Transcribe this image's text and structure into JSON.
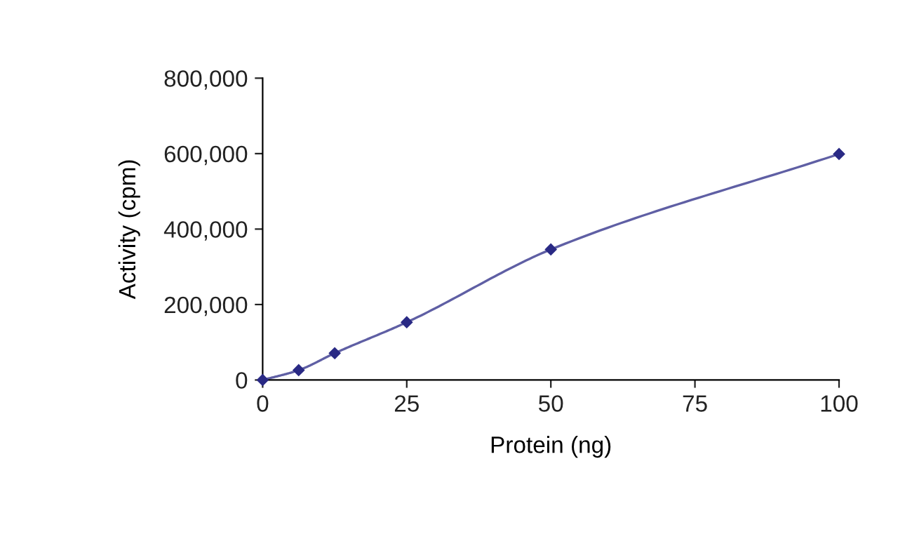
{
  "chart_data": {
    "type": "line",
    "xlabel": "Protein (ng)",
    "ylabel": "Activity (cpm)",
    "x": [
      0,
      6.25,
      12.5,
      25,
      50,
      100
    ],
    "series": [
      {
        "color": "#2a2a85",
        "values": [
          0,
          26000,
          71000,
          153000,
          346000,
          599000
        ]
      }
    ],
    "xlim": [
      0,
      100
    ],
    "xticks": [
      0,
      25,
      50,
      75,
      100
    ],
    "ylim": [
      0,
      800000
    ],
    "yticks": [
      {
        "value": 0,
        "label": "0"
      },
      {
        "value": 200000,
        "label": "200,000"
      },
      {
        "value": 400000,
        "label": "400,000"
      },
      {
        "value": 600000,
        "label": "600,000"
      },
      {
        "value": 800000,
        "label": "800,000"
      }
    ],
    "grid": false,
    "legend": false,
    "marker": "diamond",
    "line_style": "solid"
  }
}
